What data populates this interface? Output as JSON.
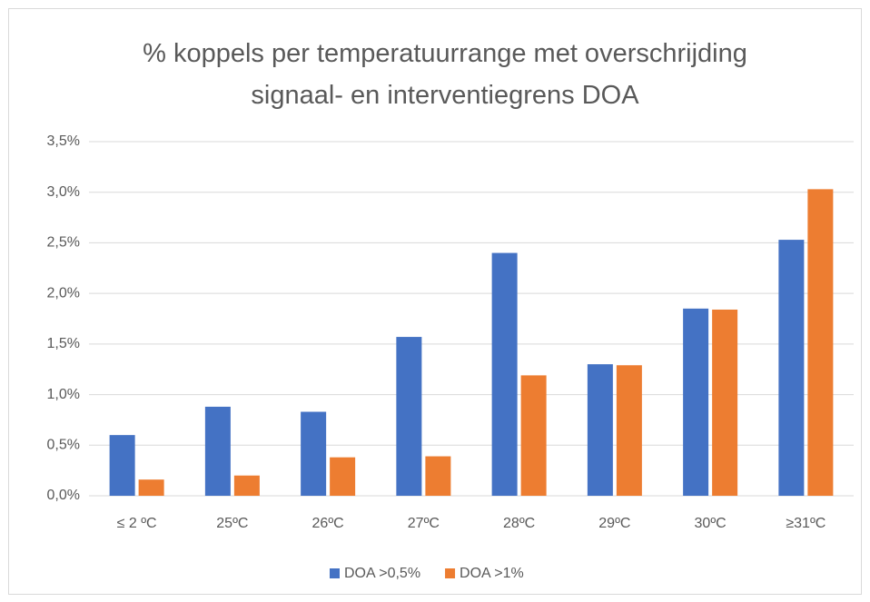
{
  "chart_data": {
    "type": "bar",
    "title": "% koppels per temperatuurrange met overschrijding signaal- en interventiegrens DOA",
    "categories": [
      "≤ 2 ºC",
      "25ºC",
      "26ºC",
      "27ºC",
      "28ºC",
      "29ºC",
      "30ºC",
      "≥31ºC"
    ],
    "series": [
      {
        "name": "DOA >0,5%",
        "color": "#4472c4",
        "values": [
          0.6,
          0.88,
          0.83,
          1.57,
          2.4,
          1.3,
          1.85,
          2.53
        ]
      },
      {
        "name": "DOA >1%",
        "color": "#ed7d31",
        "values": [
          0.16,
          0.2,
          0.38,
          0.39,
          1.19,
          1.29,
          1.84,
          3.03
        ]
      }
    ],
    "ylim": [
      0,
      3.5
    ],
    "yticks": [
      {
        "value": 0,
        "label": "0,0%"
      },
      {
        "value": 0.5,
        "label": "0,5%"
      },
      {
        "value": 1,
        "label": "1,0%"
      },
      {
        "value": 1.5,
        "label": "1,5%"
      },
      {
        "value": 2,
        "label": "2,0%"
      },
      {
        "value": 2.5,
        "label": "2,5%"
      },
      {
        "value": 3,
        "label": "3,0%"
      },
      {
        "value": 3.5,
        "label": "3,5%"
      }
    ],
    "grid": true,
    "legend": "bottom"
  }
}
